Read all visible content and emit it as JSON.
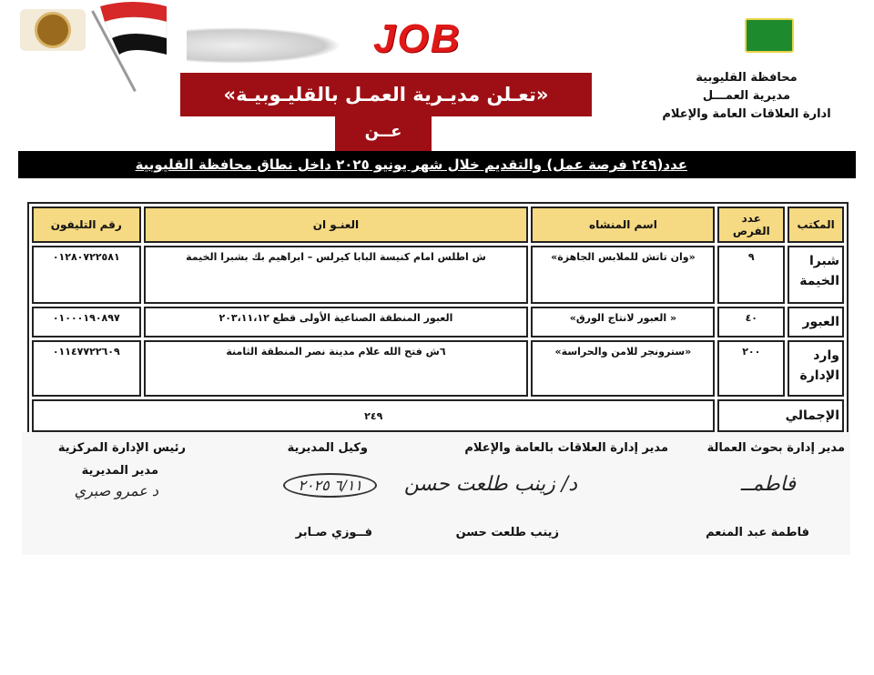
{
  "header": {
    "job_logo": "JOB",
    "org_lines": [
      "محافظة القليوبية",
      "مديرية العمـــل",
      "ادارة العلاقات العامة والإعلام"
    ],
    "banner_title": "«تعـلن مديـرية العمـل بالقليـوبيـة»",
    "banner_sub": "عــن",
    "announcement": "عدد(٢٤٩ فرصة عمل) والتقديم خلال شهر يونيو ٢٠٢٥ داخل نطاق محافظة القليوبية"
  },
  "table": {
    "headers": [
      "المكتب",
      "عدد الفرص",
      "اسم المنشاه",
      "العنـو ان",
      "رقم التليفون"
    ],
    "rows": [
      {
        "office": "شبرا الخيمة",
        "count": "٩",
        "establishment": "«وان تاتش للملابس الجاهزة»",
        "address": "ش اطلس امام كنيسة البابا كيرلس – ابراهيم بك بشبرا الخيمة",
        "phone": "٠١٢٨٠٧٢٢٥٨١"
      },
      {
        "office": "العبور",
        "count": "٤٠",
        "establishment": "« العبور لانتاج الورق»",
        "address": "العبور المنطقة الصناعية الأولى قطع ٢٠٣،١١،١٢",
        "phone": "٠١٠٠٠١٩٠٨٩٧"
      },
      {
        "office": "وارد الإدارة",
        "count": "٢٠٠",
        "establishment": "«سترونجر للامن والحراسة»",
        "address": "٦ش فتح الله علام مدينة نصر المنطقة الثامنة",
        "phone": "٠١١٤٧٧٢٢٦٠٩"
      }
    ],
    "total_label": "الإجمالي",
    "total_value": "٢٤٩"
  },
  "signatures": [
    {
      "title": "مدير إدارة بحوث العمالة",
      "name": "فاطمة عبد المنعم",
      "signature": "فاطمــ"
    },
    {
      "title": "مدير إدارة العلاقات بالعامة والإعلام",
      "name": "زينب طلعت حسن",
      "signature": "د/ زينب طلعت حسن"
    },
    {
      "title": "وكيل المديرية",
      "name": "فــوزي صـابر",
      "signature": "٦/١١ ٢٠٢٥"
    },
    {
      "title": "رئيس الإدارة المركزية",
      "subtitle": "مدير المديرية",
      "signature": "د عمرو صبري"
    }
  ],
  "colors": {
    "banner": "#9d0f14",
    "header_fill": "#f6d983",
    "bar": "#000000"
  }
}
